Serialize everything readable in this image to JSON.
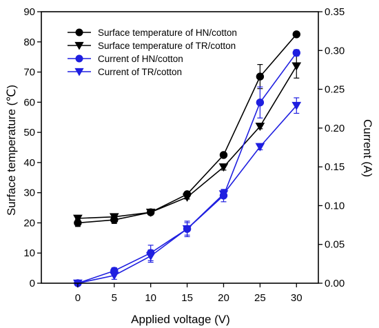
{
  "chart_data": {
    "type": "line",
    "x": [
      0,
      5,
      10,
      15,
      20,
      25,
      30
    ],
    "xlabel": "Applied voltage (V)",
    "ylabel": "Surface temperature (℃)",
    "y2label": "Current (A)",
    "xlim": [
      -5,
      33
    ],
    "ylim": [
      0,
      90
    ],
    "y2lim": [
      0,
      0.35
    ],
    "xticks": [
      "0",
      "5",
      "10",
      "15",
      "20",
      "25",
      "30"
    ],
    "yticks": [
      "0",
      "10",
      "20",
      "30",
      "40",
      "50",
      "60",
      "70",
      "80",
      "90"
    ],
    "y2ticks": [
      "0.00",
      "0.05",
      "0.10",
      "0.15",
      "0.20",
      "0.25",
      "0.30",
      "0.35"
    ],
    "legend_position": "top-left",
    "grid": false,
    "series": [
      {
        "name": "Surface temperature of HN/cotton",
        "axis": "left",
        "marker": "circle",
        "color": "#000000",
        "values": [
          20.0,
          21.0,
          23.5,
          29.5,
          42.5,
          68.5,
          82.5
        ],
        "error": [
          1.2,
          1.2,
          0.8,
          0.8,
          0.8,
          4.0,
          0.6
        ]
      },
      {
        "name": "Surface temperature of TR/cotton",
        "axis": "left",
        "marker": "triangle-down",
        "color": "#000000",
        "values": [
          21.5,
          22.0,
          23.5,
          28.5,
          38.5,
          52.0,
          72.0
        ],
        "error": [
          1.0,
          0.8,
          0.6,
          0.6,
          1.0,
          0.8,
          4.0
        ]
      },
      {
        "name": "Current of HN/cotton",
        "axis": "right",
        "marker": "circle",
        "color": "#1f1fe0",
        "values": [
          0.0,
          0.016,
          0.039,
          0.07,
          0.113,
          0.233,
          0.297
        ],
        "error": [
          0.002,
          0.004,
          0.01,
          0.01,
          0.008,
          0.02,
          0.004
        ]
      },
      {
        "name": "Current of TR/cotton",
        "axis": "right",
        "marker": "triangle-down",
        "color": "#1f1fe0",
        "values": [
          0.0,
          0.01,
          0.035,
          0.07,
          0.115,
          0.176,
          0.229
        ],
        "error": [
          0.002,
          0.005,
          0.008,
          0.008,
          0.005,
          0.004,
          0.01
        ]
      }
    ]
  }
}
